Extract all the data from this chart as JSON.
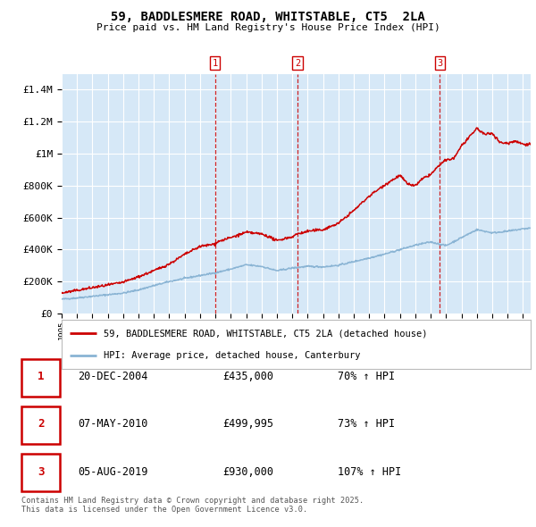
{
  "title": "59, BADDLESMERE ROAD, WHITSTABLE, CT5  2LA",
  "subtitle": "Price paid vs. HM Land Registry's House Price Index (HPI)",
  "ylim": [
    0,
    1500000
  ],
  "xlim_start": 1995.0,
  "xlim_end": 2025.5,
  "plot_bg_color": "#d6e8f7",
  "grid_color": "#ffffff",
  "red_line_color": "#cc0000",
  "blue_line_color": "#8ab4d4",
  "vline_color": "#cc0000",
  "transactions": [
    {
      "label": "1",
      "date": 2004.97,
      "price": 435000,
      "pct": "70%",
      "date_str": "20-DEC-2004"
    },
    {
      "label": "2",
      "date": 2010.35,
      "price": 499995,
      "pct": "73%",
      "date_str": "07-MAY-2010"
    },
    {
      "label": "3",
      "date": 2019.59,
      "price": 930000,
      "pct": "107%",
      "date_str": "05-AUG-2019"
    }
  ],
  "legend_label_red": "59, BADDLESMERE ROAD, WHITSTABLE, CT5 2LA (detached house)",
  "legend_label_blue": "HPI: Average price, detached house, Canterbury",
  "footer": "Contains HM Land Registry data © Crown copyright and database right 2025.\nThis data is licensed under the Open Government Licence v3.0.",
  "ytick_labels": [
    "£0",
    "£200K",
    "£400K",
    "£600K",
    "£800K",
    "£1M",
    "£1.2M",
    "£1.4M"
  ],
  "ytick_values": [
    0,
    200000,
    400000,
    600000,
    800000,
    1000000,
    1200000,
    1400000
  ]
}
